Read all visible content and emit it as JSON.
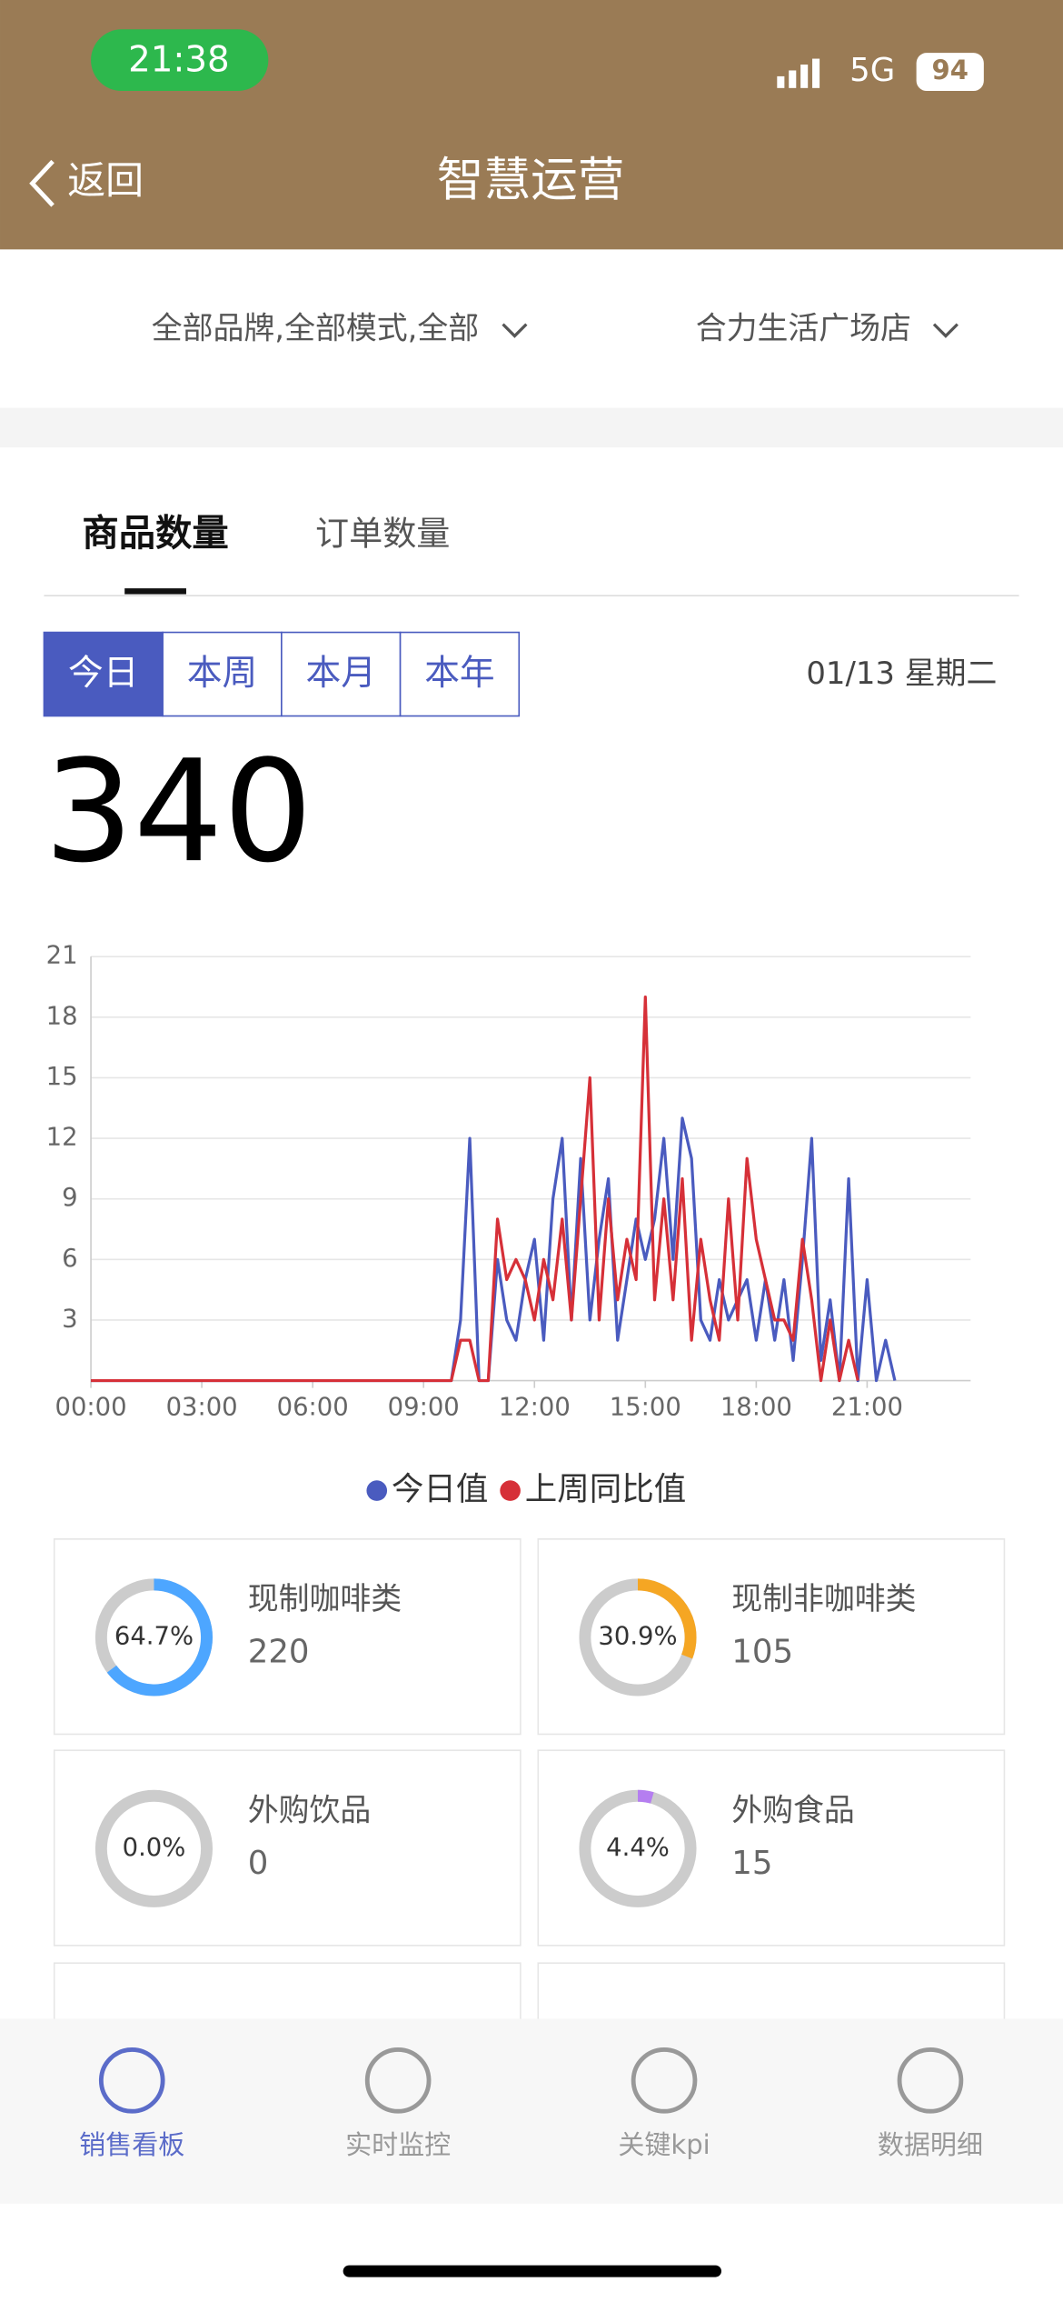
{
  "status_bar": {
    "time": "21:38",
    "network": "5G",
    "battery": 94
  },
  "nav": {
    "back": "返回",
    "title": "智慧运营"
  },
  "filters": [
    "全部品牌,全部模式,全部",
    "合力生活广场店"
  ],
  "tabs": [
    "商品数量",
    "订单数量"
  ],
  "periods": [
    "今日",
    "本周",
    "本月",
    "本年"
  ],
  "date": "01/13 星期二",
  "total": 340,
  "chart": {
    "type": "line",
    "x": [
      0,
      9.75,
      10,
      10.25,
      10.5,
      10.75,
      11,
      11.25,
      11.5,
      11.75,
      12,
      12.25,
      12.5,
      12.75,
      13,
      13.25,
      13.5,
      13.75,
      14,
      14.25,
      14.5,
      14.75,
      15,
      15.25,
      15.5,
      15.75,
      16,
      16.25,
      16.5,
      16.75,
      17,
      17.25,
      17.5,
      17.75,
      18,
      18.25,
      18.5,
      18.75,
      19,
      19.25,
      19.5,
      19.75,
      20,
      20.25,
      20.5,
      20.75,
      21,
      21.25,
      21.5,
      21.75
    ],
    "series": [
      {
        "name": "今日值",
        "color": "#4a5bbf",
        "values": [
          0,
          0,
          3,
          12,
          0,
          0,
          6,
          3,
          2,
          5,
          7,
          2,
          9,
          12,
          3,
          11,
          3,
          7,
          10,
          2,
          5,
          8,
          6,
          8,
          12,
          6,
          13,
          11,
          3,
          2,
          5,
          3,
          4,
          5,
          2,
          5,
          2,
          5,
          1,
          6,
          12,
          1,
          4,
          0,
          10,
          0,
          5,
          0,
          2,
          0
        ]
      },
      {
        "name": "上周同比值",
        "color": "#d63038",
        "values": [
          0,
          0,
          2,
          2,
          0,
          0,
          8,
          5,
          6,
          5,
          3,
          6,
          4,
          8,
          3,
          9,
          15,
          3,
          9,
          4,
          7,
          5,
          19,
          4,
          9,
          4,
          10,
          2,
          7,
          4,
          2,
          9,
          3,
          11,
          7,
          5,
          3,
          3,
          2,
          7,
          4,
          0,
          3,
          0,
          2,
          0,
          null,
          null,
          null,
          null
        ]
      }
    ],
    "xlim": [
      0,
      23.8
    ],
    "xticks": [
      {
        "value": 0,
        "label": "00:00"
      },
      {
        "value": 3,
        "label": "03:00"
      },
      {
        "value": 6,
        "label": "06:00"
      },
      {
        "value": 9,
        "label": "09:00"
      },
      {
        "value": 12,
        "label": "12:00"
      },
      {
        "value": 15,
        "label": "15:00"
      },
      {
        "value": 18,
        "label": "18:00"
      },
      {
        "value": 21,
        "label": "21:00"
      }
    ],
    "ylim": [
      0,
      21
    ],
    "yticks": [
      3,
      6,
      9,
      12,
      15,
      18,
      21
    ],
    "grid": true
  },
  "cards": [
    {
      "name": "现制咖啡类",
      "percent": 64.7,
      "percent_label": "64.7%",
      "count": 220,
      "color": "#4da6ff"
    },
    {
      "name": "现制非咖啡类",
      "percent": 30.9,
      "percent_label": "30.9%",
      "count": 105,
      "color": "#f5a623"
    },
    {
      "name": "外购饮品",
      "percent": 0,
      "percent_label": "0.0%",
      "count": 0,
      "color": "#4da6ff"
    },
    {
      "name": "外购食品",
      "percent": 4.4,
      "percent_label": "4.4%",
      "count": 15,
      "color": "#b57ef0"
    }
  ],
  "bottom_nav": [
    "销售看板",
    "实时监控",
    "关键kpi",
    "数据明细"
  ]
}
